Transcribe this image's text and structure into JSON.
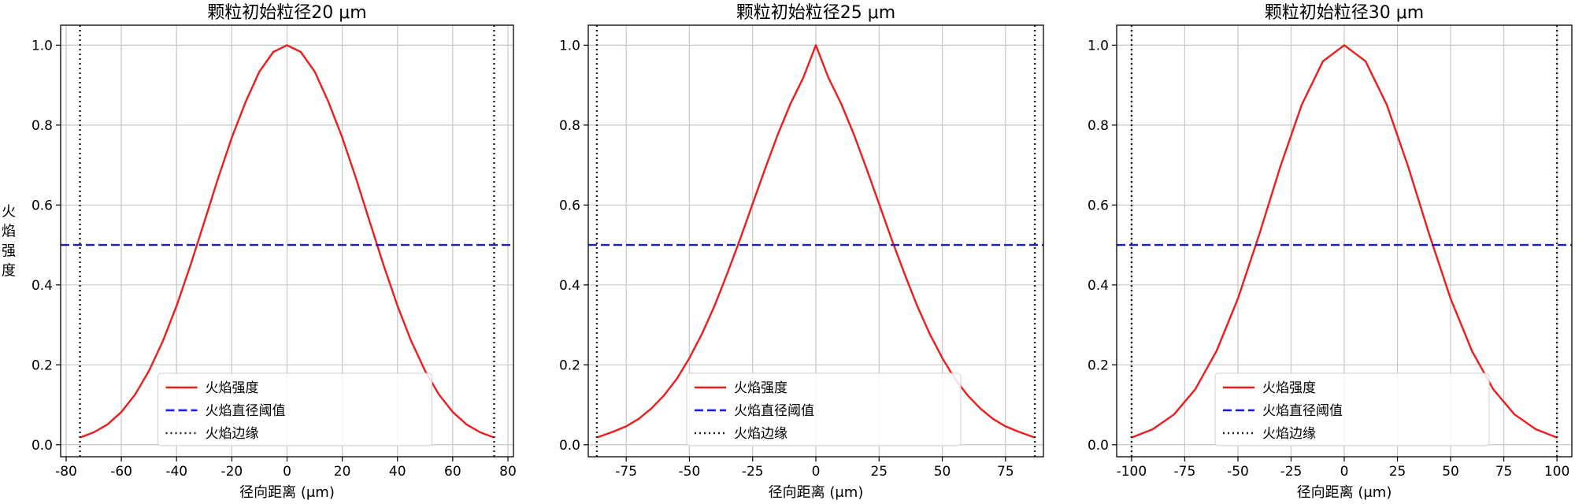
{
  "figure": {
    "background": "#ffffff"
  },
  "chart_data": [
    {
      "type": "line",
      "title": "颗粒初始粒径20 μm",
      "xlabel": "径向距离 (μm)",
      "ylabel": "火焰强度",
      "xlim": [
        -82,
        82
      ],
      "ylim": [
        -0.03,
        1.05
      ],
      "xticks": [
        -80,
        -60,
        -40,
        -20,
        0,
        20,
        40,
        60,
        80
      ],
      "xtick_labels": [
        "-80",
        "-60",
        "-40",
        "-20",
        "0",
        "20",
        "40",
        "60",
        "80"
      ],
      "yticks": [
        0.0,
        0.2,
        0.4,
        0.6,
        0.8,
        1.0
      ],
      "ytick_labels": [
        "0.0",
        "0.2",
        "0.4",
        "0.6",
        "0.8",
        "1.0"
      ],
      "grid": true,
      "legend_position": "lower-center",
      "series": [
        {
          "name": "火焰强度",
          "style": "solid",
          "color": "#ee1c1c",
          "x": [
            -75,
            -70,
            -65,
            -60,
            -55,
            -50,
            -45,
            -40,
            -35,
            -30,
            -25,
            -20,
            -15,
            -10,
            -5,
            0,
            5,
            10,
            15,
            20,
            25,
            30,
            35,
            40,
            45,
            50,
            55,
            60,
            65,
            70,
            75
          ],
          "y": [
            0.018,
            0.031,
            0.051,
            0.082,
            0.126,
            0.185,
            0.259,
            0.348,
            0.449,
            0.557,
            0.666,
            0.769,
            0.858,
            0.934,
            0.983,
            1.0,
            0.983,
            0.934,
            0.858,
            0.769,
            0.666,
            0.557,
            0.449,
            0.348,
            0.259,
            0.185,
            0.126,
            0.082,
            0.051,
            0.031,
            0.018
          ]
        },
        {
          "name": "火焰直径阈值",
          "style": "dashed",
          "color": "#1a1ad6",
          "y_const": 0.5
        },
        {
          "name": "火焰边缘",
          "style": "dotted",
          "color": "#222222",
          "x_const": [
            -75,
            75
          ]
        }
      ]
    },
    {
      "type": "line",
      "title": "颗粒初始粒径25 μm",
      "xlabel": "径向距离 (μm)",
      "ylabel": "",
      "xlim": [
        -90,
        90
      ],
      "ylim": [
        -0.03,
        1.05
      ],
      "xticks": [
        -75,
        -50,
        -25,
        0,
        25,
        50,
        75
      ],
      "xtick_labels": [
        "-75",
        "-50",
        "-25",
        "0",
        "25",
        "50",
        "75"
      ],
      "yticks": [
        0.0,
        0.2,
        0.4,
        0.6,
        0.8,
        1.0
      ],
      "ytick_labels": [
        "0.0",
        "0.2",
        "0.4",
        "0.6",
        "0.8",
        "1.0"
      ],
      "grid": true,
      "legend_position": "lower-center",
      "series": [
        {
          "name": "火焰强度",
          "style": "solid",
          "color": "#ee1c1c",
          "x": [
            -86.6,
            -80,
            -75,
            -70,
            -65,
            -60,
            -55,
            -50,
            -45,
            -40,
            -35,
            -30,
            -25,
            -20,
            -15,
            -10,
            -5,
            0,
            5,
            10,
            15,
            20,
            25,
            30,
            35,
            40,
            45,
            50,
            55,
            60,
            65,
            70,
            75,
            80,
            86.6
          ],
          "y": [
            0.018,
            0.033,
            0.046,
            0.065,
            0.091,
            0.124,
            0.165,
            0.217,
            0.278,
            0.349,
            0.429,
            0.514,
            0.603,
            0.692,
            0.777,
            0.854,
            0.918,
            1.0,
            0.918,
            0.854,
            0.777,
            0.692,
            0.603,
            0.514,
            0.429,
            0.349,
            0.278,
            0.217,
            0.165,
            0.124,
            0.091,
            0.065,
            0.046,
            0.033,
            0.018
          ]
        },
        {
          "name": "火焰直径阈值",
          "style": "dashed",
          "color": "#1a1ad6",
          "y_const": 0.5
        },
        {
          "name": "火焰边缘",
          "style": "dotted",
          "color": "#222222",
          "x_const": [
            -86.6,
            86.6
          ]
        }
      ]
    },
    {
      "type": "line",
      "title": "颗粒初始粒径30 μm",
      "xlabel": "径向距离 (μm)",
      "ylabel": "",
      "xlim": [
        -107,
        107
      ],
      "ylim": [
        -0.03,
        1.05
      ],
      "xticks": [
        -100,
        -75,
        -50,
        -25,
        0,
        25,
        50,
        75,
        100
      ],
      "xtick_labels": [
        "-100",
        "-75",
        "-50",
        "-25",
        "0",
        "25",
        "50",
        "75",
        "100"
      ],
      "yticks": [
        0.0,
        0.2,
        0.4,
        0.6,
        0.8,
        1.0
      ],
      "ytick_labels": [
        "0.0",
        "0.2",
        "0.4",
        "0.6",
        "0.8",
        "1.0"
      ],
      "grid": true,
      "legend_position": "lower-center",
      "series": [
        {
          "name": "火焰强度",
          "style": "solid",
          "color": "#ee1c1c",
          "x": [
            -100,
            -90,
            -80,
            -70,
            -60,
            -50,
            -40,
            -30,
            -20,
            -10,
            0,
            10,
            20,
            30,
            40,
            50,
            60,
            70,
            80,
            90,
            100
          ],
          "y": [
            0.018,
            0.039,
            0.076,
            0.139,
            0.235,
            0.366,
            0.526,
            0.697,
            0.851,
            0.96,
            1.0,
            0.96,
            0.851,
            0.697,
            0.526,
            0.366,
            0.235,
            0.139,
            0.076,
            0.039,
            0.018
          ]
        },
        {
          "name": "火焰直径阈值",
          "style": "dashed",
          "color": "#1a1ad6",
          "y_const": 0.5
        },
        {
          "name": "火焰边缘",
          "style": "dotted",
          "color": "#222222",
          "x_const": [
            -100,
            100
          ]
        }
      ]
    }
  ]
}
